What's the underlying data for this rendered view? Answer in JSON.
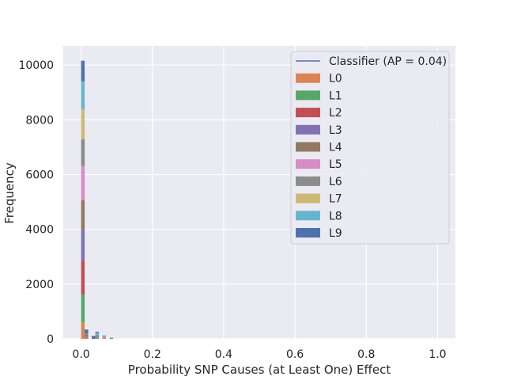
{
  "chart_data": {
    "type": "bar",
    "subtype": "stacked-histogram",
    "title": "",
    "xlabel": "Probability SNP Causes (at Least One) Effect",
    "ylabel": "Frequency",
    "xlim": [
      -0.05,
      1.05
    ],
    "ylim": [
      0,
      10700
    ],
    "xticks": [
      0.0,
      0.2,
      0.4,
      0.6,
      0.8,
      1.0
    ],
    "xtick_labels": [
      "0.0",
      "0.2",
      "0.4",
      "0.6",
      "0.8",
      "1.0"
    ],
    "yticks": [
      0,
      2000,
      4000,
      6000,
      8000,
      10000
    ],
    "ytick_labels": [
      "0",
      "2000",
      "4000",
      "6000",
      "8000",
      "10000"
    ],
    "grid": true,
    "background": "#eaeaf2",
    "legend_position": "top-right",
    "bin_width": 0.01,
    "bin_starts": [
      0.0,
      0.01,
      0.02,
      0.03,
      0.04,
      0.05,
      0.06,
      0.07,
      0.08
    ],
    "series": [
      {
        "name": "L0",
        "color": "#dd8452",
        "values": [
          600,
          30,
          0,
          0,
          0,
          0,
          80,
          0,
          0
        ]
      },
      {
        "name": "L1",
        "color": "#55a868",
        "values": [
          1020,
          10,
          0,
          0,
          0,
          0,
          0,
          0,
          40
        ]
      },
      {
        "name": "L2",
        "color": "#c44e52",
        "values": [
          1250,
          30,
          0,
          0,
          0,
          0,
          0,
          0,
          0
        ]
      },
      {
        "name": "L3",
        "color": "#8172b3",
        "values": [
          1120,
          10,
          0,
          0,
          0,
          0,
          0,
          0,
          0
        ]
      },
      {
        "name": "L4",
        "color": "#937860",
        "values": [
          1070,
          90,
          0,
          0,
          0,
          0,
          0,
          0,
          0
        ]
      },
      {
        "name": "L5",
        "color": "#da8bc3",
        "values": [
          1250,
          10,
          0,
          0,
          0,
          0,
          0,
          0,
          0
        ]
      },
      {
        "name": "L6",
        "color": "#8c8c8c",
        "values": [
          980,
          0,
          0,
          0,
          130,
          0,
          0,
          0,
          0
        ]
      },
      {
        "name": "L7",
        "color": "#ccb974",
        "values": [
          1100,
          0,
          0,
          0,
          0,
          0,
          0,
          0,
          0
        ]
      },
      {
        "name": "L8",
        "color": "#64b5cd",
        "values": [
          1020,
          0,
          0,
          0,
          90,
          0,
          50,
          0,
          0
        ]
      },
      {
        "name": "L9",
        "color": "#4c72b0",
        "values": [
          750,
          160,
          0,
          110,
          40,
          0,
          0,
          0,
          0
        ]
      }
    ],
    "line_series": [
      {
        "name": "Classifier (AP = 0.04)",
        "color": "#4c72b0"
      }
    ]
  }
}
